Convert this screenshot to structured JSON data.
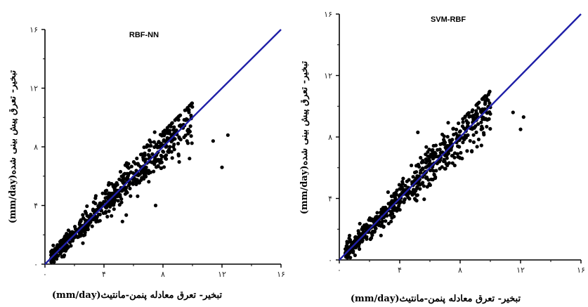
{
  "chart_data": [
    {
      "type": "scatter",
      "title": "RBF-NN",
      "xlabel": "تبخیر- تعرق معادله پنمن-مانتیث(mm/day)",
      "ylabel": "تبخیر- تعرق پیش بینی شده(mm/day)",
      "xlim": [
        0,
        16
      ],
      "ylim": [
        0,
        16
      ],
      "x_ticks": [
        0,
        4,
        8,
        12,
        16
      ],
      "y_ticks": [
        0,
        4,
        8,
        12,
        16
      ],
      "x_tick_labels": [
        "۰",
        "۴",
        "۸",
        "۱۲",
        "۱۶"
      ],
      "y_tick_labels": [
        "۰",
        "۴",
        "۸",
        "۱۲",
        "۱۶"
      ],
      "reference_line": {
        "from": [
          0,
          0
        ],
        "to": [
          16,
          16
        ],
        "color": "#1f1fa8"
      },
      "marker_color": "#000000",
      "outliers": [
        [
          11.4,
          8.4
        ],
        [
          12.4,
          8.8
        ],
        [
          12.0,
          6.6
        ],
        [
          9.8,
          7.2
        ],
        [
          7.5,
          7.0
        ],
        [
          7.5,
          4.0
        ]
      ],
      "x": [],
      "y": []
    },
    {
      "type": "scatter",
      "title": "SVM-RBF",
      "xlabel": "تبخیر- تعرق معادله پنمن-مانتیث(mm/day)",
      "ylabel": "تبخیر- تعرق پیش بینی شده(mm/day)",
      "xlim": [
        0,
        16
      ],
      "ylim": [
        0,
        16
      ],
      "x_ticks": [
        0,
        4,
        8,
        12,
        16
      ],
      "y_ticks": [
        0,
        4,
        8,
        12,
        16
      ],
      "x_tick_labels": [
        "۰",
        "۴",
        "۸",
        "۱۲",
        "۱۶"
      ],
      "y_tick_labels": [
        "۰",
        "۴",
        "۸",
        "۱۲",
        "۱۶"
      ],
      "reference_line": {
        "from": [
          0,
          0
        ],
        "to": [
          16,
          16
        ],
        "color": "#1f1fa8"
      },
      "marker_color": "#000000",
      "outliers": [
        [
          11.5,
          9.6
        ],
        [
          12.2,
          9.3
        ],
        [
          12.0,
          8.5
        ],
        [
          10.0,
          9.5
        ],
        [
          5.2,
          8.3
        ],
        [
          7.0,
          6.8
        ]
      ],
      "x": [],
      "y": []
    }
  ]
}
